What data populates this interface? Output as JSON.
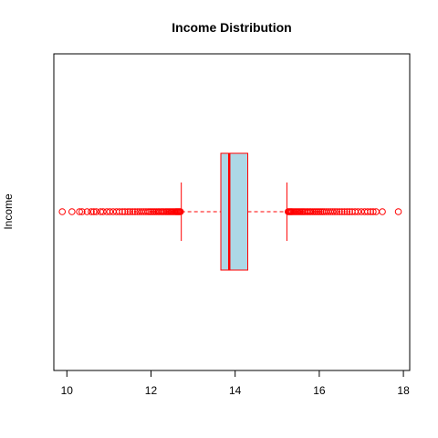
{
  "chart_data": {
    "type": "boxplot",
    "orientation": "horizontal",
    "title": "Income Distribution",
    "ylabel": "Income",
    "xlabel": "",
    "xlim": [
      9.69,
      18.15
    ],
    "xticks": [
      10,
      12,
      14,
      16,
      18
    ],
    "xtick_labels": [
      "10",
      "12",
      "14",
      "16",
      "18"
    ],
    "box": {
      "whisker_low": 12.72,
      "q1": 13.66,
      "median": 13.86,
      "q3": 14.3,
      "whisker_high": 15.23,
      "fill_color": "#add8e6",
      "line_color": "#ff0000"
    },
    "outliers": [
      9.89,
      10.12,
      10.3,
      10.36,
      10.48,
      10.58,
      10.64,
      10.7,
      10.8,
      10.86,
      10.95,
      11.02,
      11.1,
      11.18,
      11.25,
      11.32,
      11.38,
      11.45,
      11.5,
      11.56,
      11.62,
      11.68,
      11.73,
      11.78,
      11.83,
      11.88,
      11.93,
      11.97,
      12.01,
      12.05,
      12.09,
      12.13,
      12.17,
      12.2,
      12.24,
      12.27,
      12.3,
      12.34,
      12.37,
      12.4,
      12.43,
      12.46,
      12.49,
      12.52,
      12.55,
      12.58,
      12.6,
      12.62,
      12.64,
      12.66,
      12.68,
      12.7,
      15.26,
      15.28,
      15.3,
      15.32,
      15.34,
      15.36,
      15.39,
      15.42,
      15.45,
      15.48,
      15.51,
      15.54,
      15.57,
      15.6,
      15.63,
      15.66,
      15.7,
      15.73,
      15.77,
      15.8,
      15.84,
      15.88,
      15.92,
      15.96,
      16.0,
      16.04,
      16.08,
      16.12,
      16.17,
      16.22,
      16.27,
      16.32,
      16.37,
      16.42,
      16.48,
      16.54,
      16.6,
      16.66,
      16.72,
      16.78,
      16.85,
      16.92,
      17.0,
      17.08,
      17.15,
      17.22,
      17.28,
      17.35,
      17.5,
      17.88
    ],
    "outlier_color": "#ff0000",
    "grid": false
  }
}
